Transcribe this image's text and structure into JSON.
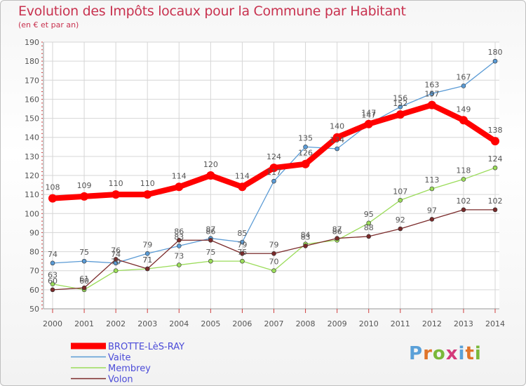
{
  "header": {
    "title": "Evolution des Impôts locaux pour la Commune par Habitant",
    "subtitle": "(en € et par an)"
  },
  "logo": {
    "text": "Proxiti",
    "colors": [
      "#5aa0d8",
      "#e0742a",
      "#7ab83a",
      "#d43a7a",
      "#5aa0d8",
      "#e0742a",
      "#7ab83a"
    ]
  },
  "chart_data": {
    "type": "line",
    "title": "Evolution des Impôts locaux pour la Commune par Habitant",
    "subtitle": "(en € et par an)",
    "x": [
      "2000",
      "2001",
      "2002",
      "2003",
      "2004",
      "2005",
      "2006",
      "2007",
      "2008",
      "2009",
      "2010",
      "2011",
      "2012",
      "2013",
      "2014"
    ],
    "ylim": [
      50,
      190
    ],
    "yticks": [
      50,
      60,
      70,
      80,
      90,
      100,
      110,
      120,
      130,
      140,
      150,
      160,
      170,
      180,
      190
    ],
    "grid": true,
    "legend_position": "bottom-left",
    "series": [
      {
        "name": "BROTTE-LèS-RAY",
        "color": "#ff0000",
        "thick": true,
        "values": [
          108,
          109,
          110,
          110,
          114,
          120,
          114,
          124,
          126,
          140,
          147,
          152,
          157,
          149,
          138
        ]
      },
      {
        "name": "Vaite",
        "color": "#5b9bd5",
        "thick": false,
        "values": [
          74,
          75,
          74,
          79,
          83,
          87,
          85,
          117,
          135,
          134,
          147,
          156,
          163,
          167,
          180
        ]
      },
      {
        "name": "Membrey",
        "color": "#9bdc5a",
        "thick": false,
        "values": [
          63,
          60,
          70,
          71,
          73,
          75,
          75,
          70,
          84,
          86,
          95,
          107,
          113,
          118,
          124
        ]
      },
      {
        "name": "Volon",
        "color": "#7a2a2a",
        "thick": false,
        "values": [
          60,
          61,
          76,
          71,
          86,
          86,
          79,
          79,
          83,
          87,
          88,
          92,
          97,
          102,
          102
        ]
      }
    ]
  }
}
